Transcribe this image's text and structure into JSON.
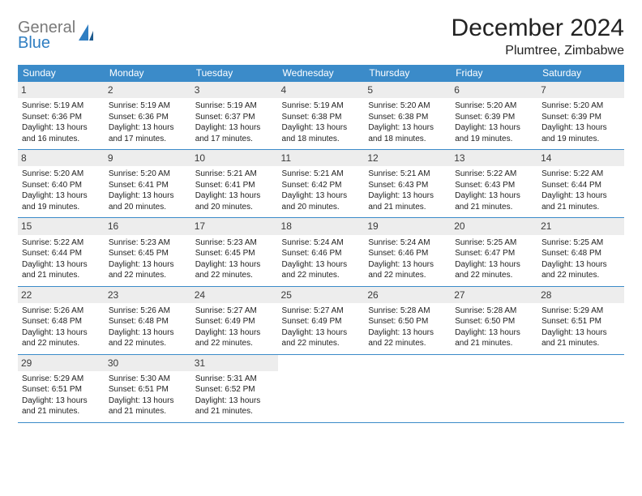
{
  "brand": {
    "general": "General",
    "blue": "Blue"
  },
  "title": "December 2024",
  "location": "Plumtree, Zimbabwe",
  "colors": {
    "header_bg": "#3b8bc9",
    "header_text": "#ffffff",
    "daynum_bg": "#ededed",
    "rule": "#3b8bc9",
    "logo_gray": "#7a7a7a",
    "logo_blue": "#2f7ec2"
  },
  "day_headers": [
    "Sunday",
    "Monday",
    "Tuesday",
    "Wednesday",
    "Thursday",
    "Friday",
    "Saturday"
  ],
  "weeks": [
    [
      {
        "n": "1",
        "sr": "5:19 AM",
        "ss": "6:36 PM",
        "dl": "13 hours and 16 minutes."
      },
      {
        "n": "2",
        "sr": "5:19 AM",
        "ss": "6:36 PM",
        "dl": "13 hours and 17 minutes."
      },
      {
        "n": "3",
        "sr": "5:19 AM",
        "ss": "6:37 PM",
        "dl": "13 hours and 17 minutes."
      },
      {
        "n": "4",
        "sr": "5:19 AM",
        "ss": "6:38 PM",
        "dl": "13 hours and 18 minutes."
      },
      {
        "n": "5",
        "sr": "5:20 AM",
        "ss": "6:38 PM",
        "dl": "13 hours and 18 minutes."
      },
      {
        "n": "6",
        "sr": "5:20 AM",
        "ss": "6:39 PM",
        "dl": "13 hours and 19 minutes."
      },
      {
        "n": "7",
        "sr": "5:20 AM",
        "ss": "6:39 PM",
        "dl": "13 hours and 19 minutes."
      }
    ],
    [
      {
        "n": "8",
        "sr": "5:20 AM",
        "ss": "6:40 PM",
        "dl": "13 hours and 19 minutes."
      },
      {
        "n": "9",
        "sr": "5:20 AM",
        "ss": "6:41 PM",
        "dl": "13 hours and 20 minutes."
      },
      {
        "n": "10",
        "sr": "5:21 AM",
        "ss": "6:41 PM",
        "dl": "13 hours and 20 minutes."
      },
      {
        "n": "11",
        "sr": "5:21 AM",
        "ss": "6:42 PM",
        "dl": "13 hours and 20 minutes."
      },
      {
        "n": "12",
        "sr": "5:21 AM",
        "ss": "6:43 PM",
        "dl": "13 hours and 21 minutes."
      },
      {
        "n": "13",
        "sr": "5:22 AM",
        "ss": "6:43 PM",
        "dl": "13 hours and 21 minutes."
      },
      {
        "n": "14",
        "sr": "5:22 AM",
        "ss": "6:44 PM",
        "dl": "13 hours and 21 minutes."
      }
    ],
    [
      {
        "n": "15",
        "sr": "5:22 AM",
        "ss": "6:44 PM",
        "dl": "13 hours and 21 minutes."
      },
      {
        "n": "16",
        "sr": "5:23 AM",
        "ss": "6:45 PM",
        "dl": "13 hours and 22 minutes."
      },
      {
        "n": "17",
        "sr": "5:23 AM",
        "ss": "6:45 PM",
        "dl": "13 hours and 22 minutes."
      },
      {
        "n": "18",
        "sr": "5:24 AM",
        "ss": "6:46 PM",
        "dl": "13 hours and 22 minutes."
      },
      {
        "n": "19",
        "sr": "5:24 AM",
        "ss": "6:46 PM",
        "dl": "13 hours and 22 minutes."
      },
      {
        "n": "20",
        "sr": "5:25 AM",
        "ss": "6:47 PM",
        "dl": "13 hours and 22 minutes."
      },
      {
        "n": "21",
        "sr": "5:25 AM",
        "ss": "6:48 PM",
        "dl": "13 hours and 22 minutes."
      }
    ],
    [
      {
        "n": "22",
        "sr": "5:26 AM",
        "ss": "6:48 PM",
        "dl": "13 hours and 22 minutes."
      },
      {
        "n": "23",
        "sr": "5:26 AM",
        "ss": "6:48 PM",
        "dl": "13 hours and 22 minutes."
      },
      {
        "n": "24",
        "sr": "5:27 AM",
        "ss": "6:49 PM",
        "dl": "13 hours and 22 minutes."
      },
      {
        "n": "25",
        "sr": "5:27 AM",
        "ss": "6:49 PM",
        "dl": "13 hours and 22 minutes."
      },
      {
        "n": "26",
        "sr": "5:28 AM",
        "ss": "6:50 PM",
        "dl": "13 hours and 22 minutes."
      },
      {
        "n": "27",
        "sr": "5:28 AM",
        "ss": "6:50 PM",
        "dl": "13 hours and 21 minutes."
      },
      {
        "n": "28",
        "sr": "5:29 AM",
        "ss": "6:51 PM",
        "dl": "13 hours and 21 minutes."
      }
    ],
    [
      {
        "n": "29",
        "sr": "5:29 AM",
        "ss": "6:51 PM",
        "dl": "13 hours and 21 minutes."
      },
      {
        "n": "30",
        "sr": "5:30 AM",
        "ss": "6:51 PM",
        "dl": "13 hours and 21 minutes."
      },
      {
        "n": "31",
        "sr": "5:31 AM",
        "ss": "6:52 PM",
        "dl": "13 hours and 21 minutes."
      },
      null,
      null,
      null,
      null
    ]
  ],
  "labels": {
    "sunrise": "Sunrise:",
    "sunset": "Sunset:",
    "daylight": "Daylight:"
  }
}
